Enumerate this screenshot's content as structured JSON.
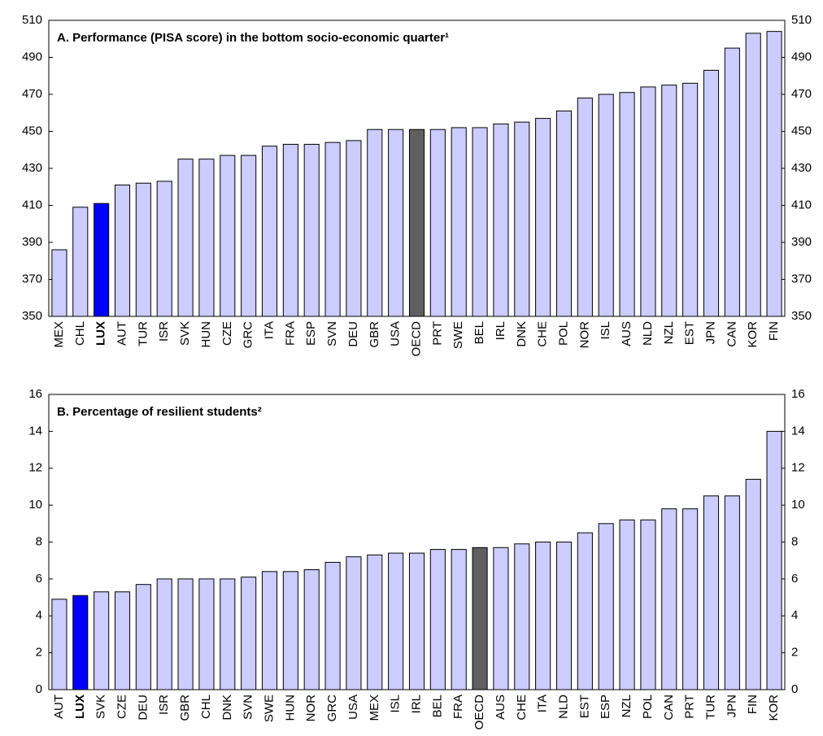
{
  "chart_data": [
    {
      "type": "bar",
      "title": "A. Performance (PISA score) in the bottom socio-economic quarter¹",
      "categories": [
        "MEX",
        "CHL",
        "LUX",
        "AUT",
        "TUR",
        "ISR",
        "SVK",
        "HUN",
        "CZE",
        "GRC",
        "ITA",
        "FRA",
        "ESP",
        "SVN",
        "DEU",
        "GBR",
        "USA",
        "OECD",
        "PRT",
        "SWE",
        "BEL",
        "IRL",
        "DNK",
        "CHE",
        "POL",
        "NOR",
        "ISL",
        "AUS",
        "NLD",
        "NZL",
        "EST",
        "JPN",
        "CAN",
        "KOR",
        "FIN"
      ],
      "values": [
        386,
        409,
        411,
        421,
        422,
        423,
        435,
        435,
        437,
        437,
        442,
        443,
        443,
        444,
        445,
        451,
        451,
        451,
        451,
        452,
        452,
        454,
        455,
        457,
        461,
        468,
        470,
        471,
        474,
        475,
        476,
        483,
        495,
        503,
        504
      ],
      "colors": [
        "#ccccff",
        "#ccccff",
        "#0000ff",
        "#ccccff",
        "#ccccff",
        "#ccccff",
        "#ccccff",
        "#ccccff",
        "#ccccff",
        "#ccccff",
        "#ccccff",
        "#ccccff",
        "#ccccff",
        "#ccccff",
        "#ccccff",
        "#ccccff",
        "#ccccff",
        "#5f5f5f",
        "#ccccff",
        "#ccccff",
        "#ccccff",
        "#ccccff",
        "#ccccff",
        "#ccccff",
        "#ccccff",
        "#ccccff",
        "#ccccff",
        "#ccccff",
        "#ccccff",
        "#ccccff",
        "#ccccff",
        "#ccccff",
        "#ccccff",
        "#ccccff",
        "#ccccff"
      ],
      "label_weight": [
        "normal",
        "normal",
        "bold",
        "normal",
        "normal",
        "normal",
        "normal",
        "normal",
        "normal",
        "normal",
        "normal",
        "normal",
        "normal",
        "normal",
        "normal",
        "normal",
        "normal",
        "normal",
        "normal",
        "normal",
        "normal",
        "normal",
        "normal",
        "normal",
        "normal",
        "normal",
        "normal",
        "normal",
        "normal",
        "normal",
        "normal",
        "normal",
        "normal",
        "normal",
        "normal"
      ],
      "ylim": [
        350,
        510
      ],
      "yticks": [
        350,
        370,
        390,
        410,
        430,
        450,
        470,
        490,
        510
      ],
      "grid": false
    },
    {
      "type": "bar",
      "title": "B. Percentage of resilient students²",
      "categories": [
        "AUT",
        "LUX",
        "SVK",
        "CZE",
        "DEU",
        "ISR",
        "GBR",
        "CHL",
        "DNK",
        "SVN",
        "SWE",
        "HUN",
        "NOR",
        "GRC",
        "USA",
        "MEX",
        "ISL",
        "IRL",
        "BEL",
        "FRA",
        "OECD",
        "AUS",
        "CHE",
        "ITA",
        "NLD",
        "EST",
        "ESP",
        "NZL",
        "POL",
        "CAN",
        "PRT",
        "TUR",
        "JPN",
        "FIN",
        "KOR"
      ],
      "values": [
        4.9,
        5.1,
        5.3,
        5.3,
        5.7,
        6.0,
        6.0,
        6.0,
        6.0,
        6.1,
        6.4,
        6.4,
        6.5,
        6.9,
        7.2,
        7.3,
        7.4,
        7.4,
        7.6,
        7.6,
        7.7,
        7.7,
        7.9,
        8.0,
        8.0,
        8.5,
        9.0,
        9.2,
        9.2,
        9.8,
        9.8,
        10.5,
        10.5,
        11.4,
        14.0
      ],
      "colors": [
        "#ccccff",
        "#0000ff",
        "#ccccff",
        "#ccccff",
        "#ccccff",
        "#ccccff",
        "#ccccff",
        "#ccccff",
        "#ccccff",
        "#ccccff",
        "#ccccff",
        "#ccccff",
        "#ccccff",
        "#ccccff",
        "#ccccff",
        "#ccccff",
        "#ccccff",
        "#ccccff",
        "#ccccff",
        "#ccccff",
        "#5f5f5f",
        "#ccccff",
        "#ccccff",
        "#ccccff",
        "#ccccff",
        "#ccccff",
        "#ccccff",
        "#ccccff",
        "#ccccff",
        "#ccccff",
        "#ccccff",
        "#ccccff",
        "#ccccff",
        "#ccccff",
        "#ccccff"
      ],
      "label_weight": [
        "normal",
        "bold",
        "normal",
        "normal",
        "normal",
        "normal",
        "normal",
        "normal",
        "normal",
        "normal",
        "normal",
        "normal",
        "normal",
        "normal",
        "normal",
        "normal",
        "normal",
        "normal",
        "normal",
        "normal",
        "normal",
        "normal",
        "normal",
        "normal",
        "normal",
        "normal",
        "normal",
        "normal",
        "normal",
        "normal",
        "normal",
        "normal",
        "normal",
        "normal",
        "normal"
      ],
      "ylim": [
        0,
        16
      ],
      "yticks": [
        0,
        2,
        4,
        6,
        8,
        10,
        12,
        14,
        16
      ],
      "grid": false
    }
  ]
}
